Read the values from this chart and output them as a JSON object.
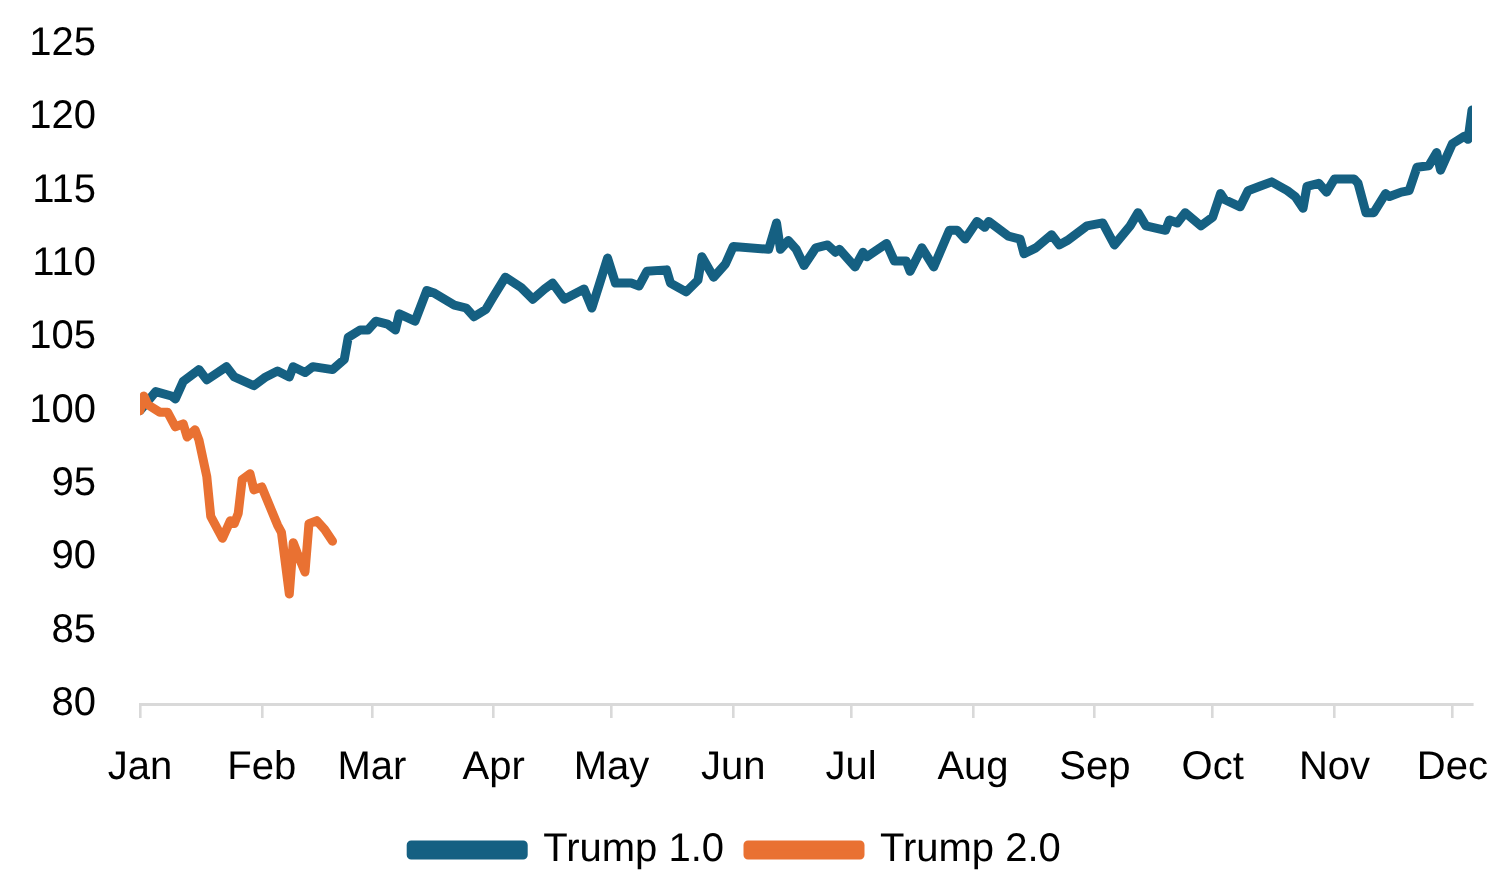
{
  "chart_data": {
    "type": "line",
    "xlim": [
      "--01-01",
      "--12-06"
    ],
    "xticks": [
      {
        "value": "--01-01",
        "label": "Jan"
      },
      {
        "value": "--02-01",
        "label": "Feb"
      },
      {
        "value": "--03-01",
        "label": "Mar"
      },
      {
        "value": "--04-01",
        "label": "Apr"
      },
      {
        "value": "--05-01",
        "label": "May"
      },
      {
        "value": "--06-01",
        "label": "Jun"
      },
      {
        "value": "--07-01",
        "label": "Jul"
      },
      {
        "value": "--08-01",
        "label": "Aug"
      },
      {
        "value": "--09-01",
        "label": "Sep"
      },
      {
        "value": "--10-01",
        "label": "Oct"
      },
      {
        "value": "--11-01",
        "label": "Nov"
      },
      {
        "value": "--12-01",
        "label": "Dec"
      }
    ],
    "ylim": [
      80,
      125
    ],
    "yticks": [
      80,
      85,
      90,
      95,
      100,
      105,
      110,
      115,
      120,
      125
    ],
    "grid": false,
    "legend": "bottom",
    "marker": "none",
    "line_style": "solid",
    "series": [
      {
        "name": "Trump 1.0",
        "color": "#156082",
        "x": [
          "--01-01",
          "--01-05",
          "--01-09",
          "--01-10",
          "--01-12",
          "--01-16",
          "--01-18",
          "--01-23",
          "--01-25",
          "--01-30",
          "--02-02",
          "--02-05",
          "--02-08",
          "--02-09",
          "--02-12",
          "--02-14",
          "--02-19",
          "--02-22",
          "--02-23",
          "--02-26",
          "--02-28",
          "--03-02",
          "--03-05",
          "--03-07",
          "--03-08",
          "--03-12",
          "--03-15",
          "--03-17",
          "--03-22",
          "--03-25",
          "--03-27",
          "--03-30",
          "--04-01",
          "--04-04",
          "--04-08",
          "--04-11",
          "--04-14",
          "--04-16",
          "--04-19",
          "--04-24",
          "--04-26",
          "--04-28",
          "--04-30",
          "--05-02",
          "--05-06",
          "--05-08",
          "--05-10",
          "--05-15",
          "--05-16",
          "--05-20",
          "--05-23",
          "--05-24",
          "--05-27",
          "--05-30",
          "--06-01",
          "--06-10",
          "--06-12",
          "--06-13",
          "--06-15",
          "--06-17",
          "--06-19",
          "--06-22",
          "--06-25",
          "--06-27",
          "--06-28",
          "--07-02",
          "--07-04",
          "--07-05",
          "--07-10",
          "--07-12",
          "--07-15",
          "--07-16",
          "--07-19",
          "--07-22",
          "--07-26",
          "--07-28",
          "--07-30",
          "--08-02",
          "--08-04",
          "--08-05",
          "--08-10",
          "--08-13",
          "--08-14",
          "--08-17",
          "--08-21",
          "--08-23",
          "--08-25",
          "--08-30",
          "--09-03",
          "--09-06",
          "--09-10",
          "--09-12",
          "--09-14",
          "--09-19",
          "--09-20",
          "--09-22",
          "--09-24",
          "--09-28",
          "--10-01",
          "--10-03",
          "--10-04",
          "--10-08",
          "--10-10",
          "--10-13",
          "--10-16",
          "--10-20",
          "--10-22",
          "--10-24",
          "--10-25",
          "--10-28",
          "--10-30",
          "--11-01",
          "--11-06",
          "--11-07",
          "--11-09",
          "--11-11",
          "--11-14",
          "--11-15",
          "--11-18",
          "--11-20",
          "--11-22",
          "--11-25",
          "--11-27",
          "--11-28",
          "--12-01",
          "--12-04",
          "--12-05",
          "--12-06"
        ],
        "values": [
          100.0,
          101.3,
          101.0,
          100.8,
          102.0,
          102.8,
          102.1,
          103.0,
          102.3,
          101.7,
          102.3,
          102.7,
          102.3,
          103.0,
          102.6,
          103.0,
          102.8,
          103.5,
          105.0,
          105.5,
          105.5,
          106.1,
          105.9,
          105.5,
          106.6,
          106.1,
          108.2,
          108.0,
          107.2,
          107.0,
          106.4,
          106.9,
          107.8,
          109.1,
          108.4,
          107.6,
          108.3,
          108.7,
          107.6,
          108.3,
          107.0,
          108.7,
          110.4,
          108.7,
          108.7,
          108.5,
          109.5,
          109.6,
          108.7,
          108.1,
          108.9,
          110.5,
          109.1,
          110.0,
          111.2,
          111.0,
          112.8,
          111.0,
          111.6,
          111.0,
          109.9,
          111.1,
          111.3,
          110.8,
          111.0,
          109.8,
          110.8,
          110.5,
          111.4,
          110.2,
          110.2,
          109.5,
          111.1,
          109.8,
          112.3,
          112.3,
          111.7,
          112.9,
          112.5,
          112.9,
          111.9,
          111.7,
          110.7,
          111.1,
          112.0,
          111.3,
          111.6,
          112.6,
          112.8,
          111.3,
          112.6,
          113.5,
          112.6,
          112.3,
          113.0,
          112.8,
          113.5,
          112.6,
          113.2,
          114.8,
          114.4,
          113.9,
          115.0,
          115.3,
          115.6,
          115.0,
          114.6,
          113.8,
          115.3,
          115.5,
          114.9,
          115.8,
          115.8,
          115.5,
          113.5,
          113.5,
          114.8,
          114.6,
          114.9,
          115.0,
          116.6,
          116.7,
          117.6,
          116.4,
          118.2,
          118.7,
          118.5,
          120.5
        ]
      },
      {
        "name": "Trump 2.0",
        "color": "#e97132",
        "x": [
          "--01-01",
          "--01-02",
          "--01-03",
          "--01-06",
          "--01-08",
          "--01-10",
          "--01-12",
          "--01-13",
          "--01-15",
          "--01-16",
          "--01-18",
          "--01-19",
          "--01-22",
          "--01-24",
          "--01-25",
          "--01-26",
          "--01-27",
          "--01-29",
          "--01-30",
          "--02-01",
          "--02-05",
          "--02-06",
          "--02-08",
          "--02-09",
          "--02-10",
          "--02-12",
          "--02-13",
          "--02-15",
          "--02-17",
          "--02-19"
        ],
        "values": [
          100.0,
          101.0,
          100.4,
          99.9,
          99.9,
          98.9,
          99.1,
          98.2,
          98.7,
          98.0,
          95.5,
          92.8,
          91.3,
          92.5,
          92.3,
          93.0,
          95.3,
          95.7,
          94.6,
          94.8,
          92.2,
          91.7,
          87.5,
          91.0,
          90.3,
          89.0,
          92.3,
          92.5,
          91.9,
          91.1
        ]
      }
    ]
  }
}
